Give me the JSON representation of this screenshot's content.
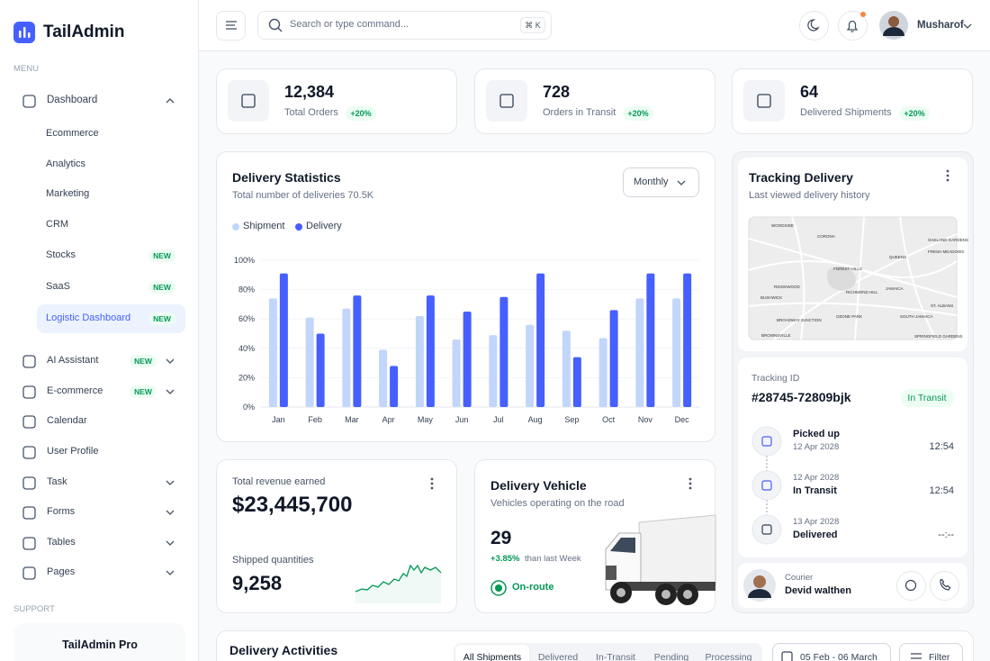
{
  "sidebar": {
    "brand": "TailAdmin",
    "menu_label": "MENU",
    "dashboard": "Dashboard",
    "dashboard_items": [
      {
        "label": "Ecommerce"
      },
      {
        "label": "Analytics"
      },
      {
        "label": "Marketing"
      },
      {
        "label": "CRM"
      },
      {
        "label": "Stocks",
        "badge": "NEW"
      },
      {
        "label": "SaaS",
        "badge": "NEW"
      },
      {
        "label": "Logistic Dashboard",
        "badge": "NEW",
        "active": true
      }
    ],
    "items": [
      {
        "label": "AI Assistant",
        "badge": "NEW",
        "expandable": true
      },
      {
        "label": "E-commerce",
        "badge": "NEW",
        "expandable": true
      },
      {
        "label": "Calendar"
      },
      {
        "label": "User Profile"
      },
      {
        "label": "Task",
        "expandable": true
      },
      {
        "label": "Forms",
        "expandable": true
      },
      {
        "label": "Tables",
        "expandable": true
      },
      {
        "label": "Pages",
        "expandable": true
      }
    ],
    "support_label": "SUPPORT",
    "promo_title": "TailAdmin Pro"
  },
  "header": {
    "search_placeholder": "Search or type command...",
    "shortcut": "⌘ K",
    "user": "Musharof"
  },
  "stats": [
    {
      "value": "12,384",
      "label": "Total Orders",
      "change": "+20%"
    },
    {
      "value": "728",
      "label": "Orders in Transit",
      "change": "+20%"
    },
    {
      "value": "64",
      "label": "Delivered Shipments",
      "change": "+20%"
    }
  ],
  "delivery_statistics": {
    "title": "Delivery Statistics",
    "subtitle": "Total number of deliveries 70.5K",
    "period": "Monthly",
    "chart": {
      "type": "bar",
      "categories": [
        "Jan",
        "Feb",
        "Mar",
        "Apr",
        "May",
        "Jun",
        "Jul",
        "Aug",
        "Sep",
        "Oct",
        "Nov",
        "Dec"
      ],
      "series": [
        {
          "name": "Shipment",
          "color": "#c2d6fb",
          "values": [
            74,
            61,
            67,
            39,
            62,
            46,
            49,
            56,
            52,
            47,
            74,
            74
          ]
        },
        {
          "name": "Delivery",
          "color": "#465fff",
          "values": [
            91,
            50,
            76,
            28,
            76,
            65,
            75,
            91,
            34,
            66,
            91,
            91
          ]
        }
      ],
      "ylim": [
        0,
        100
      ],
      "yticks": [
        {
          "value": 0,
          "label": "0%"
        },
        {
          "value": 20,
          "label": "20%"
        },
        {
          "value": 40,
          "label": "40%"
        },
        {
          "value": 60,
          "label": "60%"
        },
        {
          "value": 80,
          "label": "80%"
        },
        {
          "value": 100,
          "label": "100%"
        }
      ],
      "grid": true
    }
  },
  "revenue": {
    "label": "Total revenue earned",
    "value": "$23,445,700",
    "quantity_label": "Shipped quantities",
    "quantity": "9,258"
  },
  "vehicle": {
    "title": "Delivery Vehicle",
    "subtitle": "Vehicles operating on the road",
    "value": "29",
    "change": "+3.85%",
    "change_note": "than last Week",
    "status": "On-route"
  },
  "tracking": {
    "title": "Tracking Delivery",
    "subtitle": "Last viewed delivery history",
    "map_labels": [
      "WOODSIDE",
      "CORONA",
      "OAKLAND GARDENS",
      "FRESH MEADOWS",
      "QUEENS",
      "FOREST HILLS",
      "RIDGEWOOD",
      "RICHMOND HILL",
      "JAMAICA",
      "BUSHWICK",
      "ST. ALBANS",
      "BROADWAY JUNCTION",
      "OZONE PARK",
      "SOUTH JAMAICA",
      "BROWNSVILLE",
      "SPRINGFIELD GARDENS"
    ],
    "id_label": "Tracking ID",
    "id": "#28745-72809bjk",
    "status": "In Transit",
    "steps": [
      {
        "name": "Picked up",
        "date": "12 Apr 2028",
        "time": "12:54"
      },
      {
        "name": "In Transit",
        "date": "12 Apr 2028",
        "time": "12:54"
      },
      {
        "name": "Delivered",
        "date": "13 Apr 2028",
        "time": "--:--"
      }
    ],
    "courier_label": "Courier",
    "courier_name": "Devid walthen"
  },
  "activities": {
    "title": "Delivery Activities",
    "tabs": [
      "All Shipments",
      "Delivered",
      "In-Transit",
      "Pending",
      "Processing"
    ],
    "date_range": "05 Feb - 06 March",
    "filter": "Filter"
  }
}
